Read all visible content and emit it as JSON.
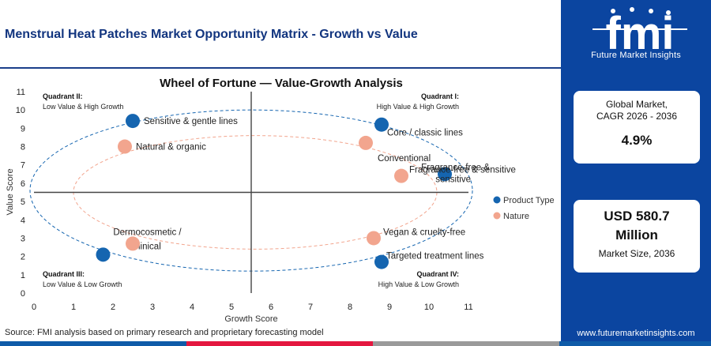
{
  "header": {
    "title": "Menstrual Heat Patches Market Opportunity Matrix - Growth vs Value",
    "source": "Source: FMI analysis based on primary research and proprietary forecasting model"
  },
  "brand": {
    "logo_letters": "fmi",
    "logo_tagline": "Future Market Insights",
    "url": "www.futuremarketinsights.com",
    "primary_color": "#0b45a0",
    "accent_colors": [
      "#0f5ba8",
      "#e4173f",
      "#9a9a9a"
    ]
  },
  "stats": {
    "cagr_label": "Global Market, CAGR 2026 - 2036",
    "cagr_value": "4.9%",
    "size_value": "USD 580.7 Million",
    "size_label": "Market Size, 2036"
  },
  "chart_data": {
    "type": "scatter",
    "title": "Wheel of Fortune — Value-Growth Analysis",
    "xlabel": "Growth Score",
    "ylabel": "Value Score",
    "xlim": [
      0,
      11
    ],
    "ylim": [
      0,
      11
    ],
    "xticks": [
      "0",
      "1",
      "2",
      "3",
      "4",
      "5",
      "6",
      "7",
      "8",
      "9",
      "10",
      "11"
    ],
    "yticks": [
      "0",
      "1",
      "2",
      "3",
      "4",
      "5",
      "6",
      "7",
      "8",
      "9",
      "10",
      "11"
    ],
    "grid": false,
    "divider": {
      "x": 5.5,
      "y": 5.5
    },
    "legend_position": "right",
    "quadrants": [
      {
        "title": "Quadrant II:",
        "subtitle": "Low Value & High Growth",
        "position": "top-left"
      },
      {
        "title": "Quadrant I:",
        "subtitle": "High Value & High Growth",
        "position": "top-right"
      },
      {
        "title": "Quadrant III:",
        "subtitle": "Low Value & Low Growth",
        "position": "bottom-left"
      },
      {
        "title": "Quadrant IV:",
        "subtitle": "High Value & Low Growth",
        "position": "bottom-right"
      }
    ],
    "series": [
      {
        "name": "Product Type",
        "color": "#1565b0",
        "points": [
          {
            "label": "Sensitive & gentle lines",
            "x": 2.5,
            "y": 9.4
          },
          {
            "label": "Core / classic lines",
            "x": 8.8,
            "y": 9.2
          },
          {
            "label": "Fragrance-free & sensitive",
            "x": 10.4,
            "y": 6.5
          },
          {
            "label": "Targeted treatment lines",
            "x": 8.8,
            "y": 1.7
          },
          {
            "label": "Dermocosmetic / clinical",
            "x": 1.75,
            "y": 2.1
          }
        ]
      },
      {
        "name": "Nature",
        "color": "#f2a58e",
        "points": [
          {
            "label": "Natural & organic",
            "x": 2.3,
            "y": 8.0
          },
          {
            "label": "Conventional",
            "x": 8.4,
            "y": 8.2
          },
          {
            "label": "Fragrance-free & sensitive",
            "x": 9.3,
            "y": 6.4
          },
          {
            "label": "Vegan & cruelty-free",
            "x": 8.6,
            "y": 3.0
          },
          {
            "label": "Dermocosmetic / clinical",
            "x": 2.5,
            "y": 2.7
          }
        ]
      }
    ]
  }
}
